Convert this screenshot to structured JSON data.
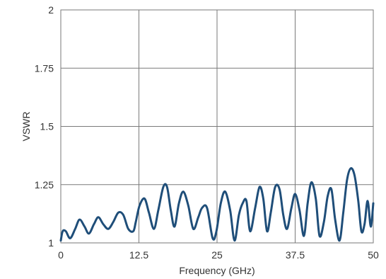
{
  "chart_data": {
    "type": "line",
    "title": "",
    "xlabel": "Frequency (GHz)",
    "ylabel": "VSWR",
    "xlim": [
      0,
      50
    ],
    "ylim": [
      1,
      2
    ],
    "xticks": [
      0,
      12.5,
      25,
      37.5,
      50
    ],
    "xtick_labels": [
      "0",
      "12.5",
      "25",
      "37.5",
      "50"
    ],
    "yticks": [
      1,
      1.25,
      1.5,
      1.75,
      2
    ],
    "ytick_labels": [
      "1",
      "1.25",
      "1.5",
      "1.75",
      "2"
    ],
    "grid": true,
    "legend": "none",
    "series": [
      {
        "color": "#1f4e79",
        "x": [
          0,
          0.3,
          0.8,
          1.5,
          2.3,
          3,
          3.8,
          4.5,
          5.3,
          6,
          6.8,
          7.6,
          8.4,
          9.2,
          10,
          10.8,
          11.6,
          12,
          12.6,
          13.4,
          14.1,
          14.9,
          15.6,
          16.4,
          17,
          17.6,
          18.2,
          18.9,
          19.6,
          20.4,
          21.2,
          22,
          22.6,
          23.4,
          24.3,
          24.9,
          25.6,
          26.3,
          27.1,
          27.8,
          28.5,
          29.1,
          29.7,
          30.3,
          31.1,
          31.8,
          32.4,
          33,
          33.6,
          34.3,
          35,
          35.6,
          36.2,
          36.9,
          37.5,
          38.2,
          38.9,
          39.5,
          40.1,
          40.8,
          41.4,
          42.1,
          42.7,
          43.3,
          43.9,
          44.6,
          45.2,
          45.8,
          46.4,
          47,
          47.6,
          48.1,
          48.6,
          49.1,
          49.6,
          50
        ],
        "y": [
          1.01,
          1.05,
          1.05,
          1.02,
          1.06,
          1.1,
          1.07,
          1.04,
          1.08,
          1.11,
          1.08,
          1.06,
          1.09,
          1.13,
          1.12,
          1.06,
          1.05,
          1.09,
          1.16,
          1.19,
          1.13,
          1.06,
          1.14,
          1.24,
          1.24,
          1.14,
          1.07,
          1.17,
          1.22,
          1.16,
          1.06,
          1.11,
          1.15,
          1.15,
          1.02,
          1.05,
          1.17,
          1.22,
          1.14,
          1.01,
          1.12,
          1.17,
          1.18,
          1.05,
          1.15,
          1.24,
          1.19,
          1.05,
          1.13,
          1.24,
          1.23,
          1.12,
          1.06,
          1.15,
          1.21,
          1.14,
          1.03,
          1.17,
          1.26,
          1.19,
          1.03,
          1.09,
          1.2,
          1.23,
          1.1,
          1.01,
          1.13,
          1.27,
          1.32,
          1.29,
          1.18,
          1.05,
          1.08,
          1.18,
          1.07,
          1.17
        ]
      }
    ]
  }
}
